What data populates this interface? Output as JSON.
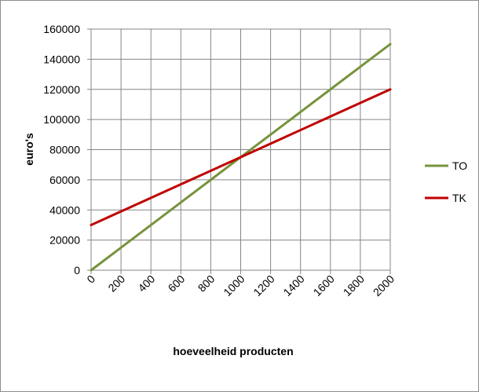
{
  "chart_data": {
    "type": "line",
    "title": "",
    "xlabel": "hoeveelheid producten",
    "ylabel": "euro's",
    "x": [
      0,
      200,
      400,
      600,
      800,
      1000,
      1200,
      1400,
      1600,
      1800,
      2000
    ],
    "x_tick_labels": [
      "0",
      "200",
      "400",
      "600",
      "800",
      "1000",
      "1200",
      "1400",
      "1600",
      "1800",
      "2000"
    ],
    "y_tick_labels": [
      "0",
      "20000",
      "40000",
      "60000",
      "80000",
      "100000",
      "120000",
      "140000",
      "160000"
    ],
    "xlim": [
      0,
      2000
    ],
    "ylim": [
      0,
      160000
    ],
    "grid": true,
    "legend_position": "right",
    "series": [
      {
        "name": "TO",
        "color": "#77933c",
        "values": [
          0,
          15000,
          30000,
          45000,
          60000,
          75000,
          90000,
          105000,
          120000,
          135000,
          150000
        ]
      },
      {
        "name": "TK",
        "color": "#c00000",
        "values": [
          30000,
          39000,
          48000,
          57000,
          66000,
          75000,
          84000,
          93000,
          102000,
          111000,
          120000
        ]
      }
    ]
  }
}
